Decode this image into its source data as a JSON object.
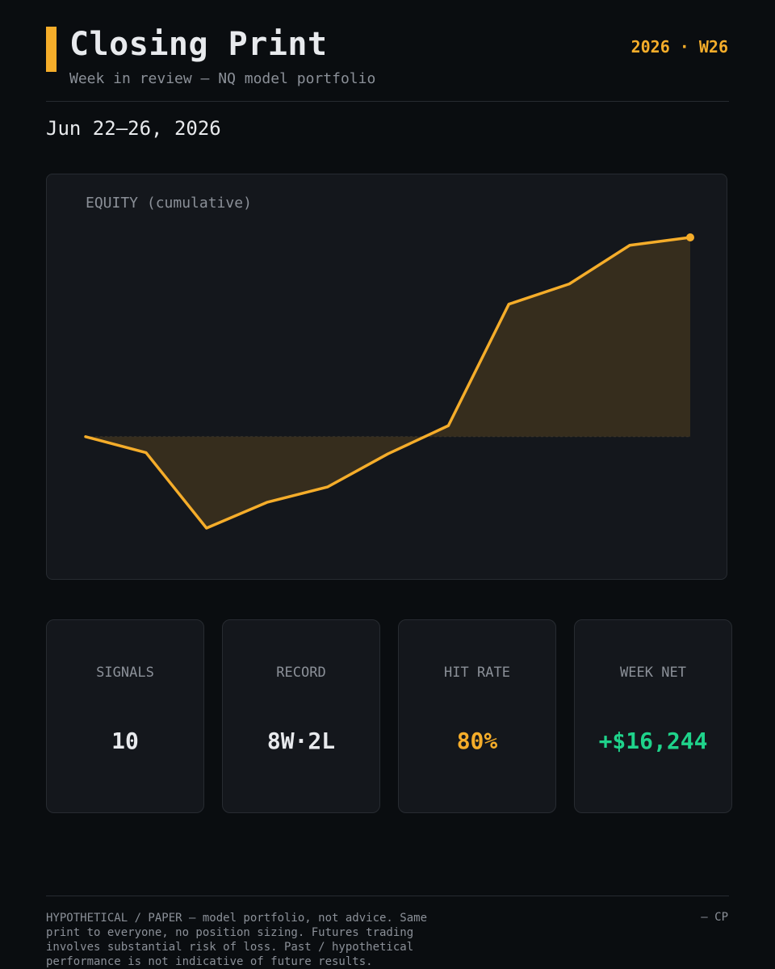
{
  "header": {
    "title": "Closing Print",
    "subtitle": "Week in review — NQ model portfolio",
    "week_tag": "2026 · W26",
    "date_range": "Jun 22–26, 2026"
  },
  "chart_data": {
    "type": "area",
    "title": "EQUITY (cumulative)",
    "x": [
      1,
      2,
      3,
      4,
      5,
      6,
      7,
      8,
      9,
      10,
      11
    ],
    "values": [
      0,
      -1300,
      -7450,
      -5350,
      -4100,
      -1400,
      900,
      10800,
      12450,
      15600,
      16244
    ],
    "xlabel": "",
    "ylabel": "",
    "ylim": [
      -7450,
      16244
    ],
    "baseline": 0,
    "grid": false,
    "color": "#f5ad2a"
  },
  "stats": [
    {
      "label": "SIGNALS",
      "value": "10",
      "color": "#e8eaed"
    },
    {
      "label": "RECORD",
      "value": "8W·2L",
      "color": "#e8eaed"
    },
    {
      "label": "HIT RATE",
      "value": "80%",
      "color": "#f5ad2a"
    },
    {
      "label": "WEEK NET",
      "value": "+$16,244",
      "color": "#1fd38b"
    }
  ],
  "footer": {
    "disclaimer": "HYPOTHETICAL / PAPER — model portfolio, not advice. Same print to everyone, no position sizing. Futures trading involves substantial risk of loss. Past / hypothetical performance is not indicative of future results.",
    "signature": "— CP"
  },
  "colors": {
    "background": "#0a0d10",
    "panel": "#14171c",
    "accent": "#f5ad2a",
    "positive": "#1fd38b",
    "muted": "#8b9098"
  }
}
